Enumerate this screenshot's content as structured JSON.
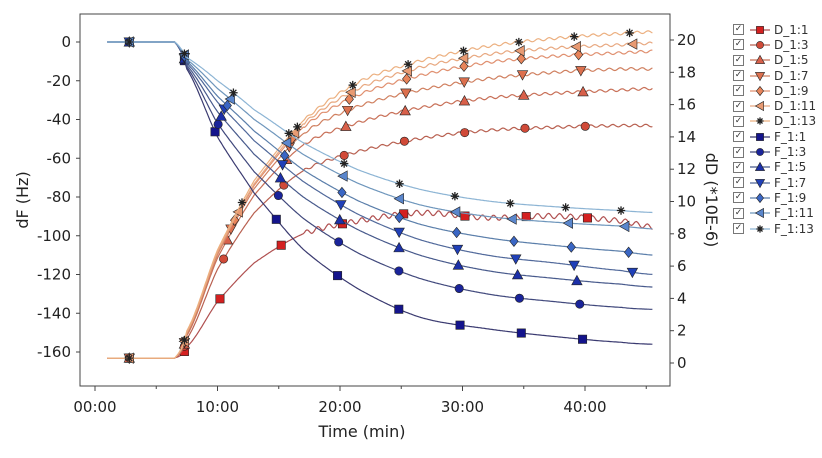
{
  "chart_data": {
    "type": "line",
    "xlabel": "Time (min)",
    "ylabel_left": "dF (Hz)",
    "ylabel_right": "dD (*10E-6)",
    "x_ticks": [
      "00:00",
      "10:00",
      "20:00",
      "30:00",
      "40:00"
    ],
    "x_tick_values": [
      0,
      10,
      20,
      30,
      40
    ],
    "xlim": [
      -1,
      47
    ],
    "ylim_left": [
      -170,
      12
    ],
    "ylim_right": [
      -1.4,
      21.6
    ],
    "y_ticks_left": [
      0,
      -20,
      -40,
      -60,
      -80,
      -100,
      -120,
      -140,
      -160
    ],
    "y_ticks_right": [
      0,
      2,
      4,
      6,
      8,
      10,
      12,
      14,
      16,
      18,
      20
    ],
    "grid": false,
    "legend_position": "right",
    "t": [
      1,
      6.5,
      7.5,
      10,
      13,
      17,
      21.5,
      26.5,
      32,
      37.5,
      43,
      45.6
    ],
    "series": [
      {
        "name": "D_1:1",
        "axis": "right",
        "marker": "square",
        "color": "#d42020",
        "line": "#b05050",
        "values": [
          0.3,
          0.3,
          1.0,
          3.8,
          6.2,
          8.0,
          8.8,
          9.3,
          9.0,
          9.1,
          8.8,
          8.4
        ]
      },
      {
        "name": "D_1:3",
        "axis": "right",
        "marker": "circle",
        "color": "#d04a38",
        "line": "#b86050",
        "values": [
          0.3,
          0.3,
          1.5,
          5.8,
          9.3,
          11.9,
          13.1,
          13.9,
          14.4,
          14.6,
          14.7,
          14.7
        ]
      },
      {
        "name": "D_1:5",
        "axis": "right",
        "marker": "triangle-up",
        "color": "#d8604a",
        "line": "#c87058",
        "values": [
          0.3,
          0.3,
          1.7,
          6.5,
          10.4,
          13.5,
          14.9,
          15.8,
          16.4,
          16.7,
          16.9,
          17.0
        ]
      },
      {
        "name": "D_1:7",
        "axis": "right",
        "marker": "triangle-down",
        "color": "#dc704e",
        "line": "#d08060",
        "values": [
          0.3,
          0.3,
          1.8,
          6.7,
          10.8,
          14.2,
          15.9,
          16.9,
          17.6,
          18.0,
          18.2,
          18.2
        ]
      },
      {
        "name": "D_1:9",
        "axis": "right",
        "marker": "diamond",
        "color": "#e8845a",
        "line": "#e09070",
        "values": [
          0.3,
          0.3,
          1.9,
          6.8,
          11.0,
          14.6,
          16.6,
          17.8,
          18.6,
          19.0,
          19.2,
          19.3
        ]
      },
      {
        "name": "D_1:11",
        "axis": "right",
        "marker": "triangle-left",
        "color": "#e89a72",
        "line": "#e8a880",
        "values": [
          0.3,
          0.3,
          1.9,
          6.9,
          11.1,
          14.8,
          17.0,
          18.3,
          19.1,
          19.5,
          19.7,
          19.8
        ]
      },
      {
        "name": "D_1:13",
        "axis": "right",
        "marker": "star",
        "color": "#222222",
        "line": "#ecb080",
        "values": [
          0.3,
          0.3,
          2.0,
          7.0,
          11.3,
          15.0,
          17.4,
          18.7,
          19.6,
          20.1,
          20.4,
          20.5
        ]
      },
      {
        "name": "F_1:1",
        "axis": "left",
        "marker": "square",
        "color": "#14148c",
        "line": "#3a3a70",
        "values": [
          0,
          0,
          -14,
          -49,
          -78,
          -107,
          -127.5,
          -142,
          -148,
          -152,
          -155,
          -156
        ]
      },
      {
        "name": "F_1:3",
        "axis": "left",
        "marker": "circle",
        "color": "#1a249a",
        "line": "#40487c",
        "values": [
          0,
          0,
          -13,
          -42,
          -67,
          -91,
          -109,
          -122,
          -130,
          -134,
          -137,
          -138
        ]
      },
      {
        "name": "F_1:5",
        "axis": "left",
        "marker": "triangle-up",
        "color": "#1c30a8",
        "line": "#485a8c",
        "values": [
          0,
          0,
          -12,
          -36,
          -58,
          -80,
          -97,
          -110,
          -118,
          -122,
          -125,
          -126.5
        ]
      },
      {
        "name": "F_1:7",
        "axis": "left",
        "marker": "triangle-down",
        "color": "#2040b8",
        "line": "#50689a",
        "values": [
          0,
          0,
          -11,
          -31,
          -51,
          -72,
          -89,
          -102,
          -110,
          -114,
          -118,
          -120
        ]
      },
      {
        "name": "F_1:9",
        "axis": "left",
        "marker": "diamond",
        "color": "#3a66c4",
        "line": "#5a7eaa",
        "values": [
          0,
          0,
          -10,
          -28,
          -46,
          -66,
          -82,
          -94,
          -101,
          -105,
          -108,
          -110
        ]
      },
      {
        "name": "F_1:11",
        "axis": "left",
        "marker": "triangle-left",
        "color": "#5a86cc",
        "line": "#6e96bc",
        "values": [
          0,
          0,
          -9,
          -24,
          -40,
          -58,
          -73,
          -84,
          -90,
          -93,
          -95,
          -96.5
        ]
      },
      {
        "name": "F_1:13",
        "axis": "left",
        "marker": "star",
        "color": "#222222",
        "line": "#8cb4d4",
        "values": [
          0,
          0,
          -8,
          -20,
          -35,
          -52,
          -66,
          -76,
          -82,
          -85,
          -87,
          -88
        ]
      }
    ]
  }
}
